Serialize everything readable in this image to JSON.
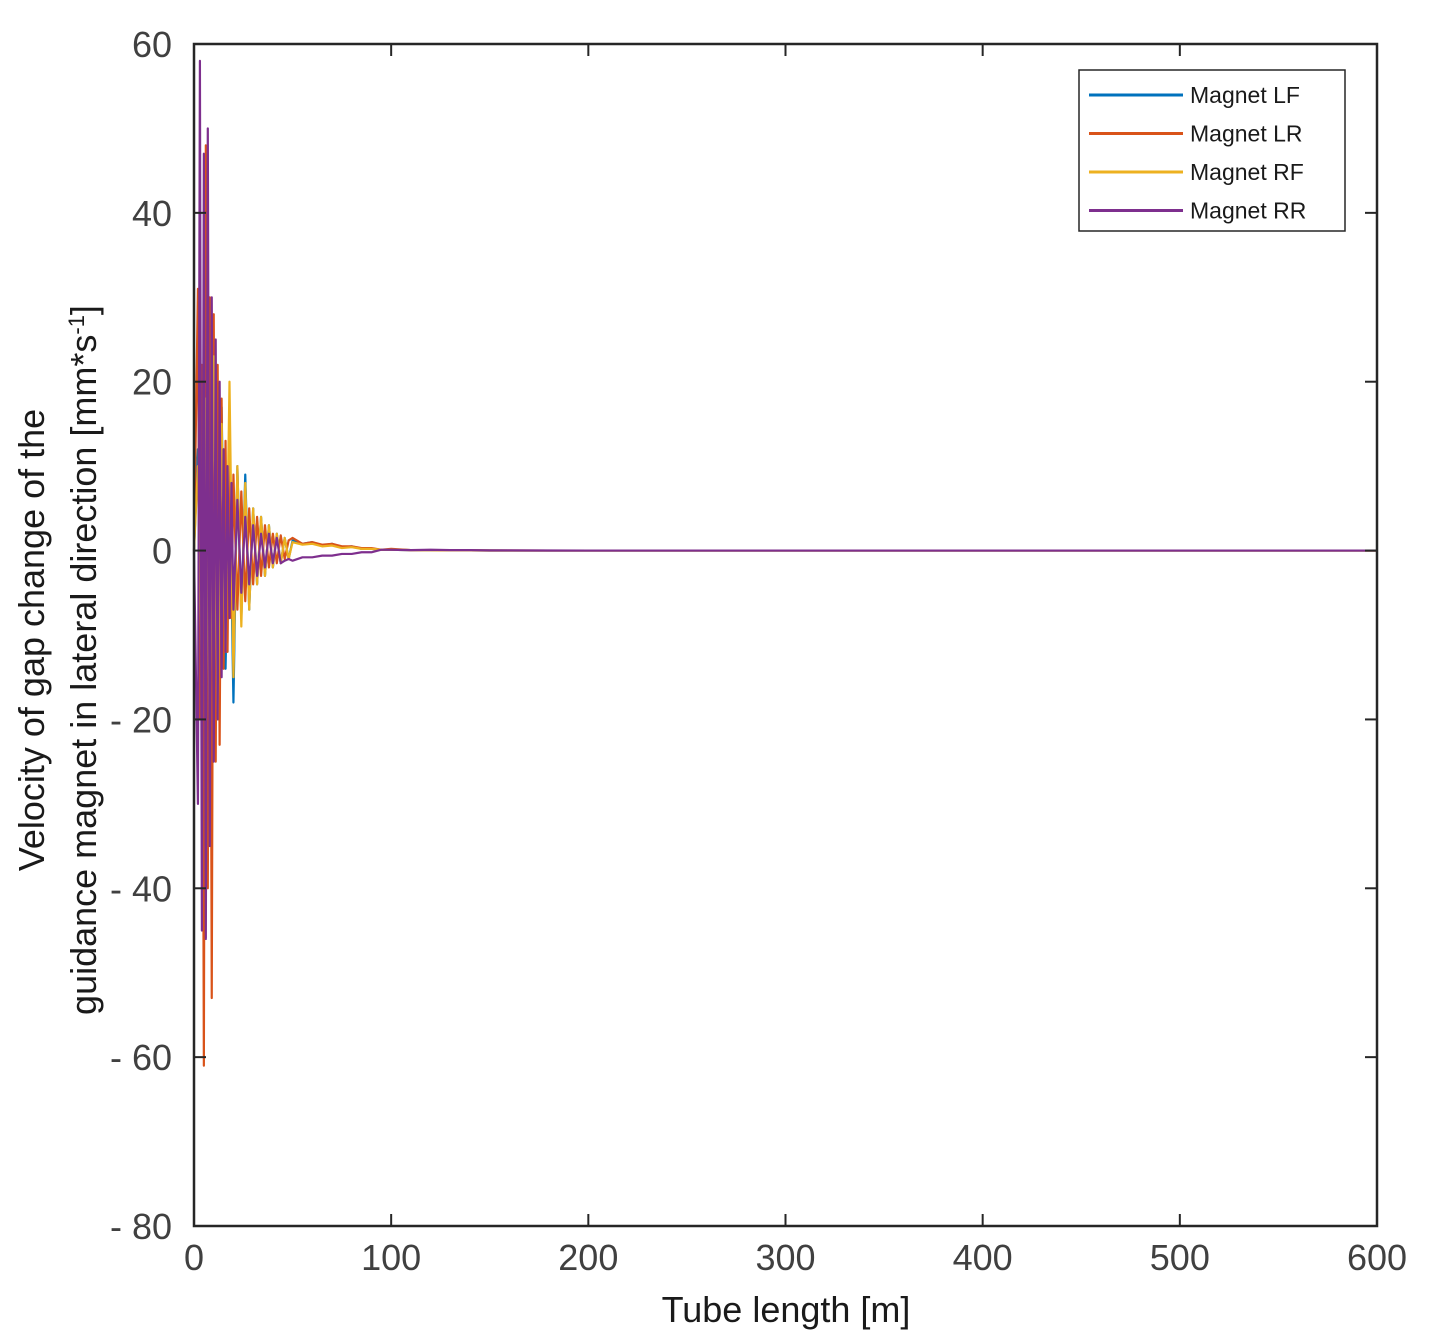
{
  "chart_data": {
    "type": "line",
    "title": "",
    "xlabel": "Tube length [m]",
    "ylabel_line1": "Velocity of gap change of the",
    "ylabel_line2_main": "guidance  magnet in lateral direction [mm*s",
    "ylabel_line2_sup": "-1",
    "ylabel_line2_end": "]",
    "xlim": [
      0,
      600
    ],
    "ylim": [
      -80,
      60
    ],
    "xticks": [
      0,
      100,
      200,
      300,
      400,
      500,
      600
    ],
    "xtick_labels": [
      "0",
      "100",
      "200",
      "300",
      "400",
      "500",
      "600"
    ],
    "yticks": [
      60,
      40,
      20,
      0,
      -20,
      -40,
      -60,
      -80
    ],
    "ytick_labels": [
      "60",
      "40",
      "20",
      "0",
      "- 20",
      "- 40",
      "- 60",
      "- 80"
    ],
    "grid": false,
    "legend_position": "top-right",
    "series": [
      {
        "name": "Magnet LF",
        "color": "#0072BD",
        "x": [
          0,
          2,
          4,
          6,
          8,
          10,
          12,
          14,
          16,
          18,
          20,
          22,
          24,
          26,
          28,
          30,
          32,
          34,
          36,
          38,
          40,
          42,
          44,
          46,
          48,
          50,
          55,
          60,
          65,
          70,
          75,
          80,
          85,
          90,
          95,
          100,
          110,
          120,
          130,
          140,
          150,
          160,
          180,
          200,
          250,
          300,
          400,
          500,
          600
        ],
        "values": [
          0,
          12,
          -15,
          20,
          -25,
          24,
          -20,
          17,
          -14,
          11,
          -18,
          10,
          -8,
          9,
          -7,
          5,
          -4,
          4,
          -3,
          3,
          -2,
          2,
          -1.5,
          1.5,
          -1,
          1.2,
          0.8,
          1.0,
          0.6,
          0.8,
          0.4,
          0.5,
          0.2,
          0.2,
          0.1,
          0.1,
          0.05,
          0.05,
          0.02,
          0.02,
          0.01,
          0,
          0,
          0,
          0,
          0,
          0,
          0,
          0
        ]
      },
      {
        "name": "Magnet LR",
        "color": "#D95319",
        "x": [
          0,
          2,
          3,
          4,
          5,
          6,
          7,
          8,
          9,
          10,
          11,
          12,
          13,
          14,
          15,
          16,
          17,
          18,
          19,
          20,
          22,
          24,
          26,
          28,
          30,
          32,
          34,
          36,
          38,
          40,
          42,
          44,
          46,
          48,
          50,
          55,
          60,
          65,
          70,
          75,
          80,
          85,
          90,
          95,
          100,
          110,
          120,
          130,
          140,
          150,
          160,
          180,
          200,
          250,
          300,
          400,
          500,
          600
        ],
        "values": [
          0,
          31,
          -20,
          22,
          -61,
          48,
          -40,
          30,
          -53,
          28,
          -25,
          22,
          -23,
          18,
          -14,
          13,
          -12,
          12,
          -8,
          9,
          -7,
          7,
          -6,
          5,
          -4,
          4,
          -3,
          3,
          -2,
          2,
          -1.5,
          1.8,
          -1,
          1.2,
          1.5,
          0.8,
          1.0,
          0.7,
          0.8,
          0.5,
          0.5,
          0.3,
          0.3,
          0.1,
          0.2,
          0.05,
          0.05,
          0.02,
          0.02,
          0.01,
          0.01,
          0,
          0,
          0,
          0,
          0,
          0,
          0
        ]
      },
      {
        "name": "Magnet RF",
        "color": "#EDB120",
        "x": [
          0,
          2,
          4,
          6,
          8,
          10,
          12,
          14,
          16,
          18,
          20,
          22,
          24,
          26,
          28,
          30,
          32,
          34,
          36,
          38,
          40,
          42,
          44,
          46,
          48,
          50,
          55,
          60,
          65,
          70,
          75,
          80,
          85,
          90,
          95,
          100,
          110,
          120,
          130,
          140,
          150,
          160,
          180,
          200,
          250,
          300,
          400,
          500,
          600
        ],
        "values": [
          0,
          10,
          -14,
          18,
          -22,
          23,
          -20,
          15,
          -12,
          20,
          -15,
          10,
          -9,
          8,
          -7,
          5,
          -4,
          4,
          -3,
          3,
          -2,
          2,
          -1.5,
          1.5,
          -1,
          1,
          0.7,
          0.8,
          0.5,
          0.6,
          0.3,
          0.4,
          0.2,
          0.2,
          0.1,
          0.1,
          0.05,
          0.05,
          0.02,
          0.02,
          0.01,
          0,
          0,
          0,
          0,
          0,
          0,
          0,
          0
        ]
      },
      {
        "name": "Magnet RR",
        "color": "#7E2F8E",
        "x": [
          0,
          2,
          3,
          4,
          5,
          6,
          7,
          8,
          9,
          10,
          11,
          12,
          13,
          14,
          15,
          16,
          17,
          18,
          19,
          20,
          22,
          24,
          26,
          28,
          30,
          32,
          34,
          36,
          38,
          40,
          42,
          44,
          46,
          48,
          50,
          55,
          60,
          65,
          70,
          75,
          80,
          85,
          90,
          95,
          100,
          110,
          120,
          130,
          140,
          150,
          160,
          180,
          200,
          250,
          300,
          400,
          500,
          600
        ],
        "values": [
          0,
          -30,
          58,
          -45,
          47,
          -46,
          50,
          -35,
          30,
          -25,
          25,
          -20,
          20,
          -15,
          12,
          -12,
          10,
          -8,
          8,
          -7,
          6,
          -5,
          4,
          -4,
          3,
          -3,
          2,
          -2,
          2,
          -1.5,
          1.5,
          -1.5,
          -1.2,
          -1,
          -1.2,
          -0.8,
          -0.8,
          -0.6,
          -0.6,
          -0.4,
          -0.4,
          -0.2,
          -0.2,
          0.1,
          0.1,
          0.05,
          0.1,
          0.05,
          0.05,
          0.02,
          0.02,
          0.01,
          0,
          0,
          0,
          0,
          0,
          0
        ]
      }
    ]
  }
}
